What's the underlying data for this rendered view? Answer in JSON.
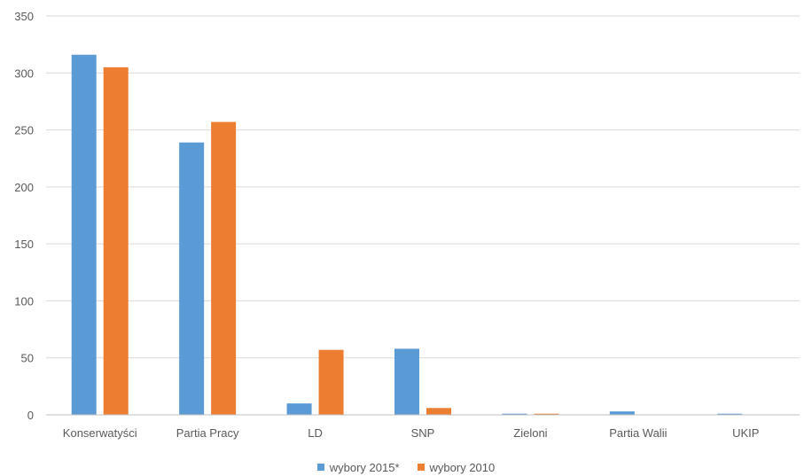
{
  "chart_data": {
    "type": "bar",
    "categories": [
      "Konserwatyści",
      "Partia Pracy",
      "LD",
      "SNP",
      "Zieloni",
      "Partia Walii",
      "UKIP"
    ],
    "series": [
      {
        "name": "wybory 2015*",
        "values": [
          316,
          239,
          10,
          58,
          1,
          3,
          1
        ],
        "color": "#5b9bd5"
      },
      {
        "name": "wybory 2010",
        "values": [
          305,
          257,
          57,
          6,
          1,
          0,
          0
        ],
        "color": "#ed7d31"
      }
    ],
    "yticks": [
      0,
      50,
      100,
      150,
      200,
      250,
      300,
      350
    ],
    "ylim": [
      0,
      350
    ],
    "grid": true,
    "legend_position": "bottom-center",
    "gridline_color": "#d9d9d9",
    "axis_line_color": "#bfbfbf",
    "text_color": "#595959"
  }
}
